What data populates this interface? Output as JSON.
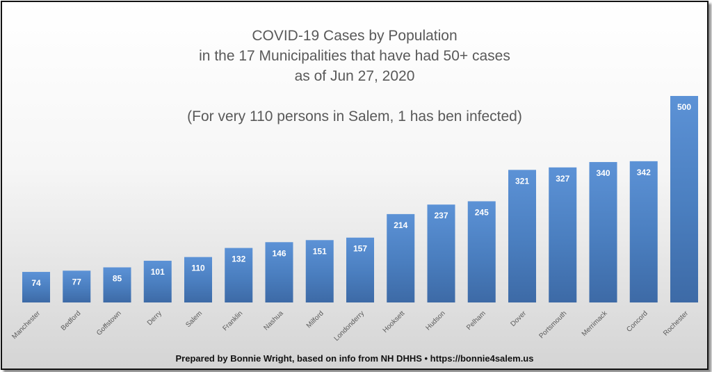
{
  "chart_data": {
    "type": "bar",
    "title_lines": [
      "COVID-19 Cases by Population",
      "in the 17 Municipalities that have had 50+ cases",
      "as of Jun 27, 2020"
    ],
    "subtitle": "(For very 110 persons in Salem, 1 has ben infected)",
    "categories": [
      "Manchester",
      "Bedford",
      "Goffstown",
      "Derry",
      "Salem",
      "Franklin",
      "Nashua",
      "Milford",
      "Londonderry",
      "Hooksett",
      "Hudson",
      "Pelham",
      "Dover",
      "Portsmouth",
      "Merrimack",
      "Concord",
      "Rochester"
    ],
    "values": [
      74,
      77,
      85,
      101,
      110,
      132,
      146,
      151,
      157,
      214,
      237,
      245,
      321,
      327,
      340,
      342,
      500
    ],
    "data_labels": true,
    "ylim": [
      0,
      500
    ],
    "grid": false,
    "bar_color": "#4a7ebf",
    "bar_color_light": "#5c92d6",
    "bar_color_dark": "#3d6aa6"
  },
  "footer": "Prepared by Bonnie Wright, based on info from NH DHHS • https://bonnie4salem.us"
}
